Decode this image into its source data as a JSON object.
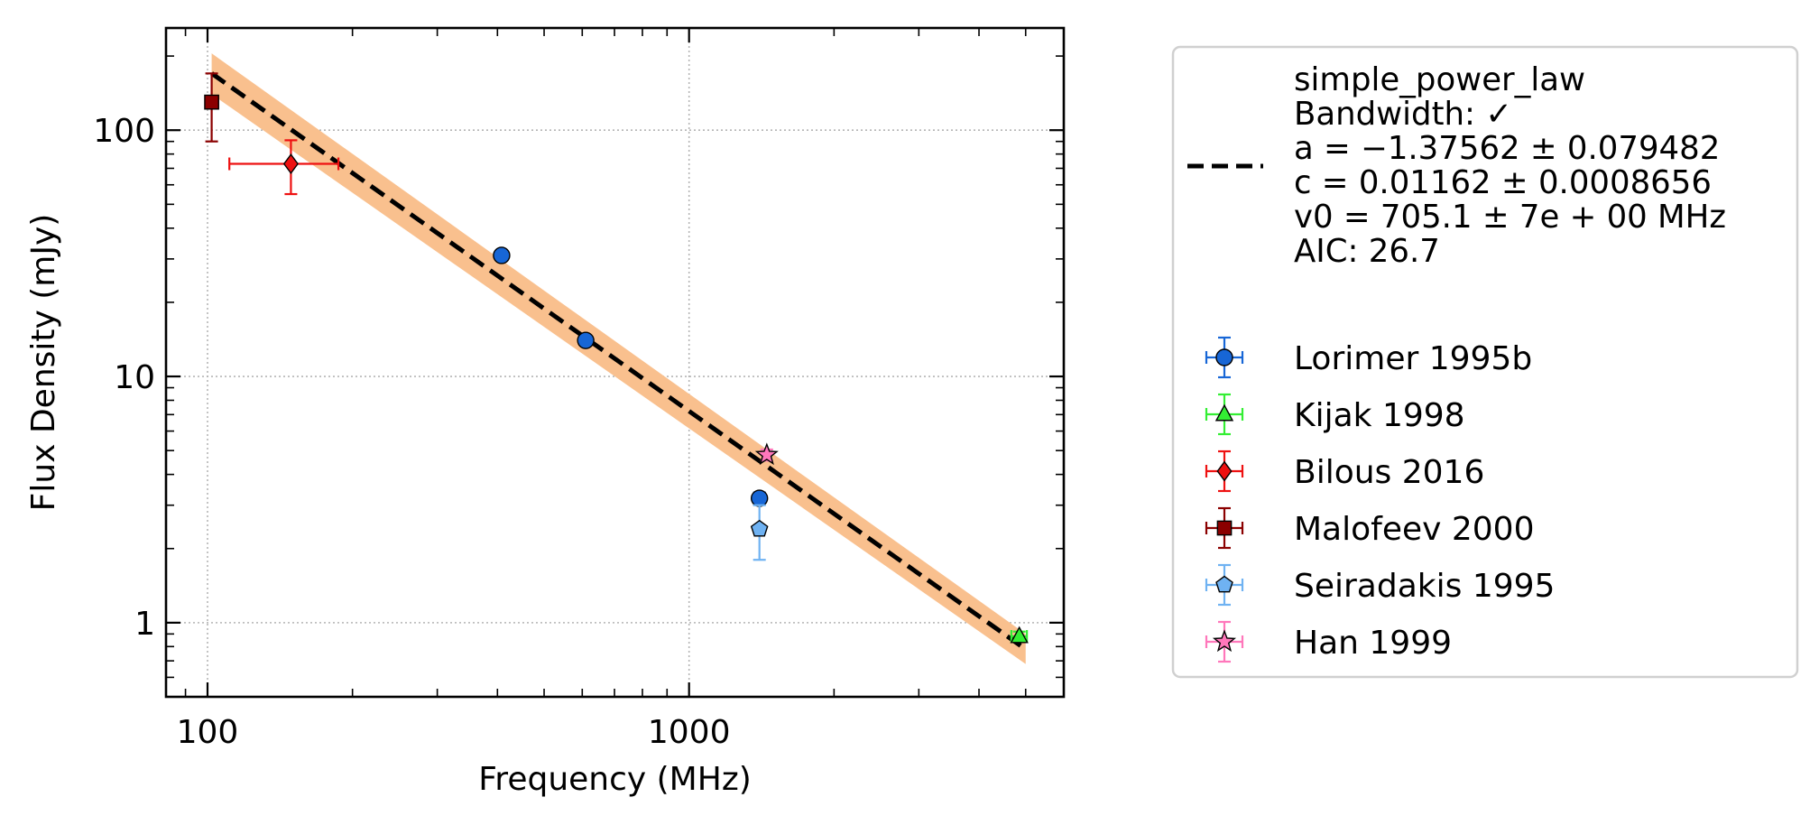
{
  "chart_data": {
    "type": "scatter",
    "xlabel": "Frequency (MHz)",
    "ylabel": "Flux Density (mJy)",
    "x_scale": "log",
    "y_scale": "log",
    "xlim": [
      82,
      6000
    ],
    "ylim": [
      0.5,
      260
    ],
    "x_ticks": [
      {
        "value": 100,
        "label": "100"
      },
      {
        "value": 1000,
        "label": "1000"
      }
    ],
    "y_ticks": [
      {
        "value": 1,
        "label": "1"
      },
      {
        "value": 10,
        "label": "10"
      },
      {
        "value": 100,
        "label": "100"
      }
    ],
    "grid": true,
    "legend_position": "outside-right",
    "fit": {
      "lines": [
        "simple_power_law",
        "Bandwidth: ✓",
        "a = −1.37562 ± 0.079482",
        "c = 0.01162 ± 0.0008656",
        "v0 = 705.1 ± 7e + 00 MHz",
        "AIC: 26.7"
      ],
      "x_range": [
        102,
        5000
      ],
      "y_range": [
        170,
        0.78
      ],
      "band": {
        "upper": [
          205,
          0.9
        ],
        "lower": [
          140,
          0.68
        ]
      },
      "line_color": "#000000",
      "band_color": "#f9c08e"
    },
    "series": [
      {
        "name": "Lorimer 1995b",
        "marker": "circle",
        "color": "#1766d6",
        "points": [
          {
            "x": 408,
            "y": 31
          },
          {
            "x": 610,
            "y": 14
          },
          {
            "x": 1400,
            "y": 3.2,
            "yerr": [
              0.18,
              0.18
            ]
          }
        ]
      },
      {
        "name": "Kijak 1998",
        "marker": "triangle",
        "color": "#33ee33",
        "points": [
          {
            "x": 4850,
            "y": 0.88,
            "xerr": [
              180,
              180
            ],
            "yerr": [
              0.04,
              0.04
            ]
          }
        ]
      },
      {
        "name": "Bilous 2016",
        "marker": "diamond",
        "color": "#ee1111",
        "points": [
          {
            "x": 149,
            "y": 73,
            "xerr": [
              38,
              38
            ],
            "yerr": [
              18,
              18
            ]
          }
        ]
      },
      {
        "name": "Malofeev 2000",
        "marker": "square",
        "color": "#8b0000",
        "points": [
          {
            "x": 102,
            "y": 130,
            "yerr": [
              40,
              40
            ]
          }
        ]
      },
      {
        "name": "Seiradakis 1995",
        "marker": "pentagon",
        "color": "#6fb2f2",
        "points": [
          {
            "x": 1400,
            "y": 2.4,
            "yerr": [
              0.6,
              0.6
            ]
          }
        ]
      },
      {
        "name": "Han 1999",
        "marker": "star",
        "color": "#ff77bb",
        "points": [
          {
            "x": 1450,
            "y": 4.8,
            "yerr": [
              0.25,
              0.25
            ]
          }
        ]
      }
    ]
  }
}
